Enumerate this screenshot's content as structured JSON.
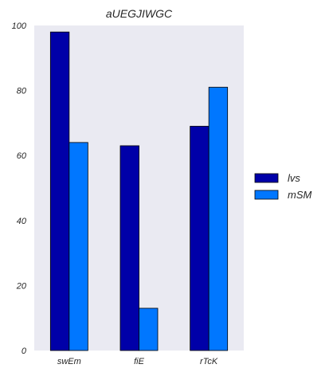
{
  "chart_data": {
    "type": "bar",
    "title": "aUEGJIWGC",
    "xlabel": "",
    "ylabel": "",
    "categories": [
      "swEm",
      "fiE",
      "rTcK"
    ],
    "series": [
      {
        "name": "lvs",
        "values": [
          98,
          63,
          69
        ],
        "color": "#0000a8"
      },
      {
        "name": "mSM",
        "values": [
          64,
          13,
          81
        ],
        "color": "#0077ff"
      }
    ],
    "ylim": [
      0,
      100
    ],
    "yticks": [
      0,
      20,
      40,
      60,
      80,
      100
    ],
    "grid": false,
    "background": "#eaeaf2",
    "legend_position": "right"
  }
}
